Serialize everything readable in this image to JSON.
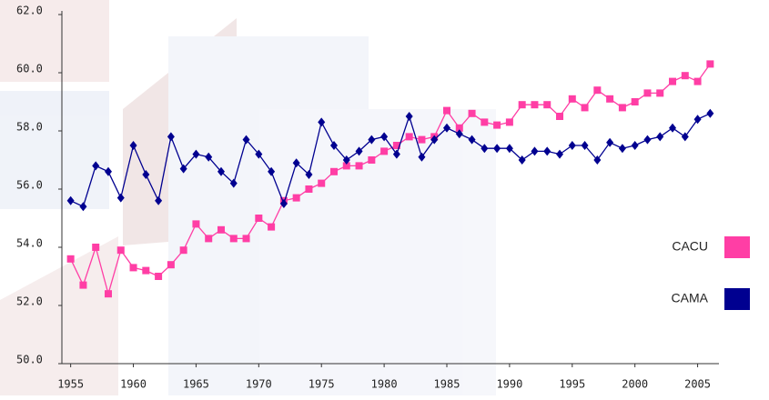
{
  "chart_data": {
    "type": "line",
    "x": [
      1955,
      1956,
      1957,
      1958,
      1959,
      1960,
      1961,
      1962,
      1963,
      1964,
      1965,
      1966,
      1967,
      1968,
      1969,
      1970,
      1971,
      1972,
      1973,
      1974,
      1975,
      1976,
      1977,
      1978,
      1979,
      1980,
      1981,
      1982,
      1983,
      1984,
      1985,
      1986,
      1987,
      1988,
      1989,
      1990,
      1991,
      1992,
      1993,
      1994,
      1995,
      1996,
      1997,
      1998,
      1999,
      2000,
      2001,
      2002,
      2003,
      2004,
      2005,
      2006
    ],
    "series": [
      {
        "name": "CACU",
        "color": "#ff3ea5",
        "marker": "square",
        "values": [
          53.6,
          52.7,
          54.0,
          52.4,
          53.9,
          53.3,
          53.2,
          53.0,
          53.4,
          53.9,
          54.8,
          54.3,
          54.6,
          54.3,
          54.3,
          55.0,
          54.7,
          55.6,
          55.7,
          56.0,
          56.2,
          56.6,
          56.8,
          56.8,
          57.0,
          57.3,
          57.5,
          57.8,
          57.7,
          57.8,
          58.7,
          58.1,
          58.6,
          58.3,
          58.2,
          58.3,
          58.9,
          58.9,
          58.9,
          58.5,
          59.1,
          58.8,
          59.4,
          59.1,
          58.8,
          59.0,
          59.3,
          59.3,
          59.7,
          59.9,
          59.7,
          60.3
        ]
      },
      {
        "name": "CAMA",
        "color": "#000090",
        "marker": "diamond",
        "values": [
          55.6,
          55.4,
          56.8,
          56.6,
          55.7,
          57.5,
          56.5,
          55.6,
          57.8,
          56.7,
          57.2,
          57.1,
          56.6,
          56.2,
          57.7,
          57.2,
          56.6,
          55.5,
          56.9,
          56.5,
          58.3,
          57.5,
          57.0,
          57.3,
          57.7,
          57.8,
          57.2,
          58.5,
          57.1,
          57.7,
          58.1,
          57.9,
          57.7,
          57.4,
          57.4,
          57.4,
          57.0,
          57.3,
          57.3,
          57.2,
          57.5,
          57.5,
          57.0,
          57.6,
          57.4,
          57.5,
          57.7,
          57.8,
          58.1,
          57.8,
          58.4,
          58.6
        ]
      }
    ],
    "xlim": [
      1954.3,
      2006.7
    ],
    "xticks": [
      1955,
      1960,
      1965,
      1970,
      1975,
      1980,
      1985,
      1990,
      1995,
      2000,
      2005
    ],
    "ylim": [
      50,
      62
    ],
    "yticks": [
      {
        "value": 50,
        "label": "50.0"
      },
      {
        "value": 52,
        "label": "52.0"
      },
      {
        "value": 54,
        "label": "54.0"
      },
      {
        "value": 56,
        "label": "56.0"
      },
      {
        "value": 58,
        "label": "58.0"
      },
      {
        "value": 60,
        "label": "60.0"
      },
      {
        "value": 62,
        "label": "62.0"
      }
    ],
    "legend": "right"
  }
}
